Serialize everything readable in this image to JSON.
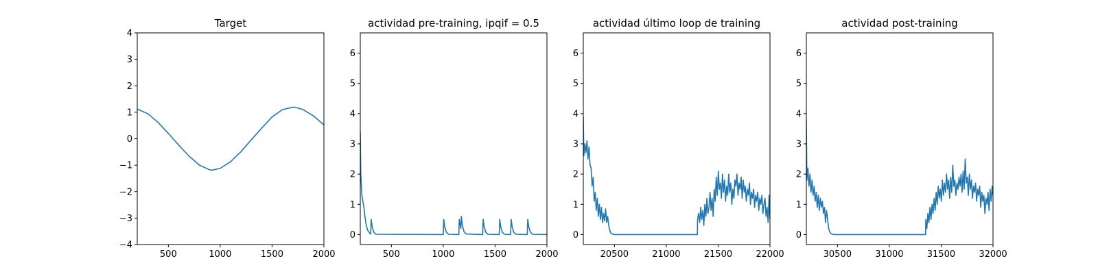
{
  "chart_data": [
    {
      "type": "line",
      "title": "Target",
      "xlim": [
        200,
        2000
      ],
      "ylim": [
        -4,
        4
      ],
      "xticks": [
        500,
        1000,
        1500,
        2000
      ],
      "yticks": [
        -4,
        -3,
        -2,
        -1,
        0,
        1,
        2,
        3,
        4
      ],
      "xtick_labels": [
        "500",
        "1000",
        "1500",
        "2000"
      ],
      "ytick_labels": [
        "−4",
        "−3",
        "−2",
        "−1",
        "0",
        "1",
        "2",
        "3",
        "4"
      ],
      "grid": false,
      "color": "#1f77b4",
      "series": [
        {
          "x": [
            200,
            300,
            400,
            500,
            600,
            700,
            800,
            900,
            920,
            1000,
            1100,
            1200,
            1300,
            1400,
            1500,
            1600,
            1700,
            1720,
            1800,
            1900,
            2000
          ],
          "y": [
            1.12,
            0.95,
            0.62,
            0.2,
            -0.24,
            -0.66,
            -1.0,
            -1.18,
            -1.19,
            -1.12,
            -0.87,
            -0.49,
            -0.04,
            0.4,
            0.82,
            1.1,
            1.19,
            1.19,
            1.1,
            0.86,
            0.52
          ]
        }
      ]
    },
    {
      "type": "line",
      "title": "actividad pre-training, ipqif = 0.5",
      "xlim": [
        200,
        2000
      ],
      "ylim": [
        -0.33,
        6.67
      ],
      "xticks": [
        500,
        1000,
        1500,
        2000
      ],
      "yticks": [
        0,
        1,
        2,
        3,
        4,
        5,
        6
      ],
      "xtick_labels": [
        "500",
        "1000",
        "1500",
        "2000"
      ],
      "ytick_labels": [
        "0",
        "1",
        "2",
        "3",
        "4",
        "5",
        "6"
      ],
      "grid": false,
      "color": "#1f77b4",
      "series": [
        {
          "x": [
            200,
            205,
            215,
            225,
            235,
            245,
            255,
            270,
            290,
            300,
            305,
            315,
            330,
            350,
            1000,
            1005,
            1015,
            1030,
            1050,
            1150,
            1155,
            1165,
            1170,
            1175,
            1185,
            1200,
            1220,
            1380,
            1385,
            1395,
            1410,
            1430,
            1540,
            1545,
            1555,
            1570,
            1590,
            1650,
            1655,
            1665,
            1680,
            1700,
            1810,
            1815,
            1825,
            1840,
            1860,
            2000
          ],
          "y": [
            3.4,
            2.0,
            1.3,
            1.1,
            0.9,
            0.6,
            0.35,
            0.15,
            0.05,
            0.02,
            0.5,
            0.25,
            0.08,
            0.01,
            0.0,
            0.5,
            0.25,
            0.08,
            0.01,
            0.0,
            0.5,
            0.3,
            0.2,
            0.6,
            0.3,
            0.1,
            0.02,
            0.0,
            0.5,
            0.25,
            0.08,
            0.01,
            0.0,
            0.5,
            0.25,
            0.08,
            0.01,
            0.0,
            0.5,
            0.25,
            0.08,
            0.01,
            0.0,
            0.5,
            0.25,
            0.08,
            0.01,
            0.0
          ]
        }
      ]
    },
    {
      "type": "line",
      "title": "actividad último loop de training",
      "xlim": [
        20200,
        22000
      ],
      "ylim": [
        -0.33,
        6.67
      ],
      "xticks": [
        20500,
        21000,
        21500,
        22000
      ],
      "yticks": [
        0,
        1,
        2,
        3,
        4,
        5,
        6
      ],
      "xtick_labels": [
        "20500",
        "21000",
        "21500",
        "22000"
      ],
      "ytick_labels": [
        "0",
        "1",
        "2",
        "3",
        "4",
        "5",
        "6"
      ],
      "grid": false,
      "color": "#1f77b4",
      "series": [
        {
          "x": [
            20200,
            20205,
            20215,
            20225,
            20235,
            20245,
            20255,
            20265,
            20275,
            20285,
            20295,
            20305,
            20315,
            20325,
            20335,
            20345,
            20355,
            20365,
            20375,
            20385,
            20395,
            20405,
            20415,
            20425,
            20435,
            20445,
            20455,
            20465,
            20480,
            20500,
            20520,
            20550,
            21300,
            21302,
            21312,
            21322,
            21332,
            21342,
            21352,
            21362,
            21372,
            21382,
            21392,
            21402,
            21412,
            21422,
            21432,
            21442,
            21452,
            21462,
            21472,
            21482,
            21492,
            21502,
            21512,
            21522,
            21532,
            21542,
            21552,
            21562,
            21572,
            21582,
            21592,
            21602,
            21612,
            21622,
            21632,
            21642,
            21652,
            21662,
            21672,
            21682,
            21692,
            21702,
            21712,
            21722,
            21732,
            21742,
            21752,
            21762,
            21772,
            21782,
            21792,
            21802,
            21812,
            21822,
            21832,
            21842,
            21852,
            21862,
            21872,
            21882,
            21892,
            21902,
            21912,
            21922,
            21932,
            21942,
            21952,
            21962,
            21972,
            21982,
            21992,
            22000
          ],
          "y": [
            3.9,
            2.6,
            3.0,
            2.7,
            3.1,
            2.5,
            2.9,
            2.3,
            2.2,
            1.6,
            1.9,
            1.1,
            1.4,
            0.8,
            1.2,
            0.6,
            1.0,
            0.5,
            0.9,
            0.4,
            0.7,
            0.45,
            0.85,
            0.4,
            0.6,
            0.3,
            0.15,
            0.05,
            0.02,
            0.0,
            0.0,
            0.0,
            0.0,
            0.5,
            0.7,
            0.4,
            0.9,
            0.5,
            0.8,
            0.3,
            1.0,
            0.6,
            1.2,
            0.7,
            0.9,
            1.4,
            0.8,
            1.2,
            0.6,
            1.5,
            1.1,
            1.9,
            1.3,
            2.1,
            1.5,
            1.7,
            1.2,
            2.0,
            1.4,
            1.8,
            1.1,
            1.6,
            1.3,
            2.0,
            1.4,
            1.7,
            1.0,
            1.5,
            1.2,
            1.8,
            1.6,
            2.0,
            1.3,
            1.7,
            1.5,
            1.9,
            1.2,
            1.8,
            1.4,
            1.6,
            1.1,
            1.5,
            1.3,
            1.7,
            1.0,
            1.4,
            1.2,
            1.5,
            0.9,
            1.3,
            1.1,
            1.4,
            0.8,
            1.2,
            1.0,
            1.3,
            0.7,
            1.0,
            1.2,
            0.6,
            0.9,
            0.4,
            1.3,
            0.5
          ]
        }
      ]
    },
    {
      "type": "line",
      "title": "actividad post-training",
      "xlim": [
        30200,
        32000
      ],
      "ylim": [
        -0.33,
        6.67
      ],
      "xticks": [
        30500,
        31000,
        31500,
        32000
      ],
      "yticks": [
        0,
        1,
        2,
        3,
        4,
        5,
        6
      ],
      "xtick_labels": [
        "30500",
        "31000",
        "31500",
        "32000"
      ],
      "ytick_labels": [
        "0",
        "1",
        "2",
        "3",
        "4",
        "5",
        "6"
      ],
      "grid": false,
      "color": "#1f77b4",
      "series": [
        {
          "x": [
            30200,
            30205,
            30215,
            30225,
            30235,
            30245,
            30255,
            30265,
            30275,
            30285,
            30295,
            30305,
            30315,
            30325,
            30335,
            30345,
            30355,
            30365,
            30375,
            30385,
            30395,
            30405,
            30415,
            30425,
            30435,
            30450,
            30470,
            30500,
            31350,
            31352,
            31362,
            31372,
            31382,
            31392,
            31402,
            31412,
            31422,
            31432,
            31442,
            31452,
            31462,
            31472,
            31482,
            31492,
            31502,
            31512,
            31522,
            31532,
            31542,
            31552,
            31562,
            31572,
            31582,
            31592,
            31602,
            31612,
            31622,
            31632,
            31642,
            31652,
            31662,
            31672,
            31682,
            31692,
            31702,
            31712,
            31722,
            31732,
            31742,
            31752,
            31762,
            31772,
            31782,
            31792,
            31802,
            31812,
            31822,
            31832,
            31842,
            31852,
            31862,
            31872,
            31882,
            31892,
            31902,
            31912,
            31922,
            31932,
            31942,
            31952,
            31962,
            31972,
            31982,
            31992,
            32000
          ],
          "y": [
            3.8,
            1.8,
            2.2,
            1.6,
            2.0,
            1.4,
            1.8,
            1.3,
            1.6,
            1.1,
            1.4,
            0.9,
            1.3,
            0.8,
            1.2,
            0.9,
            1.1,
            0.7,
            0.9,
            0.4,
            0.8,
            0.5,
            0.2,
            0.1,
            0.04,
            0.01,
            0.0,
            0.0,
            0.0,
            0.5,
            0.2,
            0.7,
            0.4,
            0.9,
            0.5,
            1.0,
            0.7,
            1.2,
            0.8,
            1.4,
            1.0,
            1.6,
            1.2,
            1.5,
            1.1,
            1.8,
            1.3,
            1.7,
            1.4,
            2.0,
            1.5,
            1.8,
            1.2,
            1.9,
            1.4,
            2.3,
            1.6,
            1.8,
            1.3,
            1.7,
            1.5,
            1.9,
            1.6,
            2.0,
            1.4,
            2.1,
            1.5,
            2.5,
            1.7,
            1.9,
            1.3,
            2.0,
            1.5,
            1.8,
            1.2,
            1.6,
            1.4,
            1.7,
            1.1,
            1.5,
            1.3,
            1.6,
            0.9,
            1.4,
            1.1,
            1.3,
            0.7,
            1.2,
            1.0,
            1.4,
            0.8,
            1.5,
            1.1,
            1.6,
            1.3
          ]
        }
      ]
    }
  ]
}
